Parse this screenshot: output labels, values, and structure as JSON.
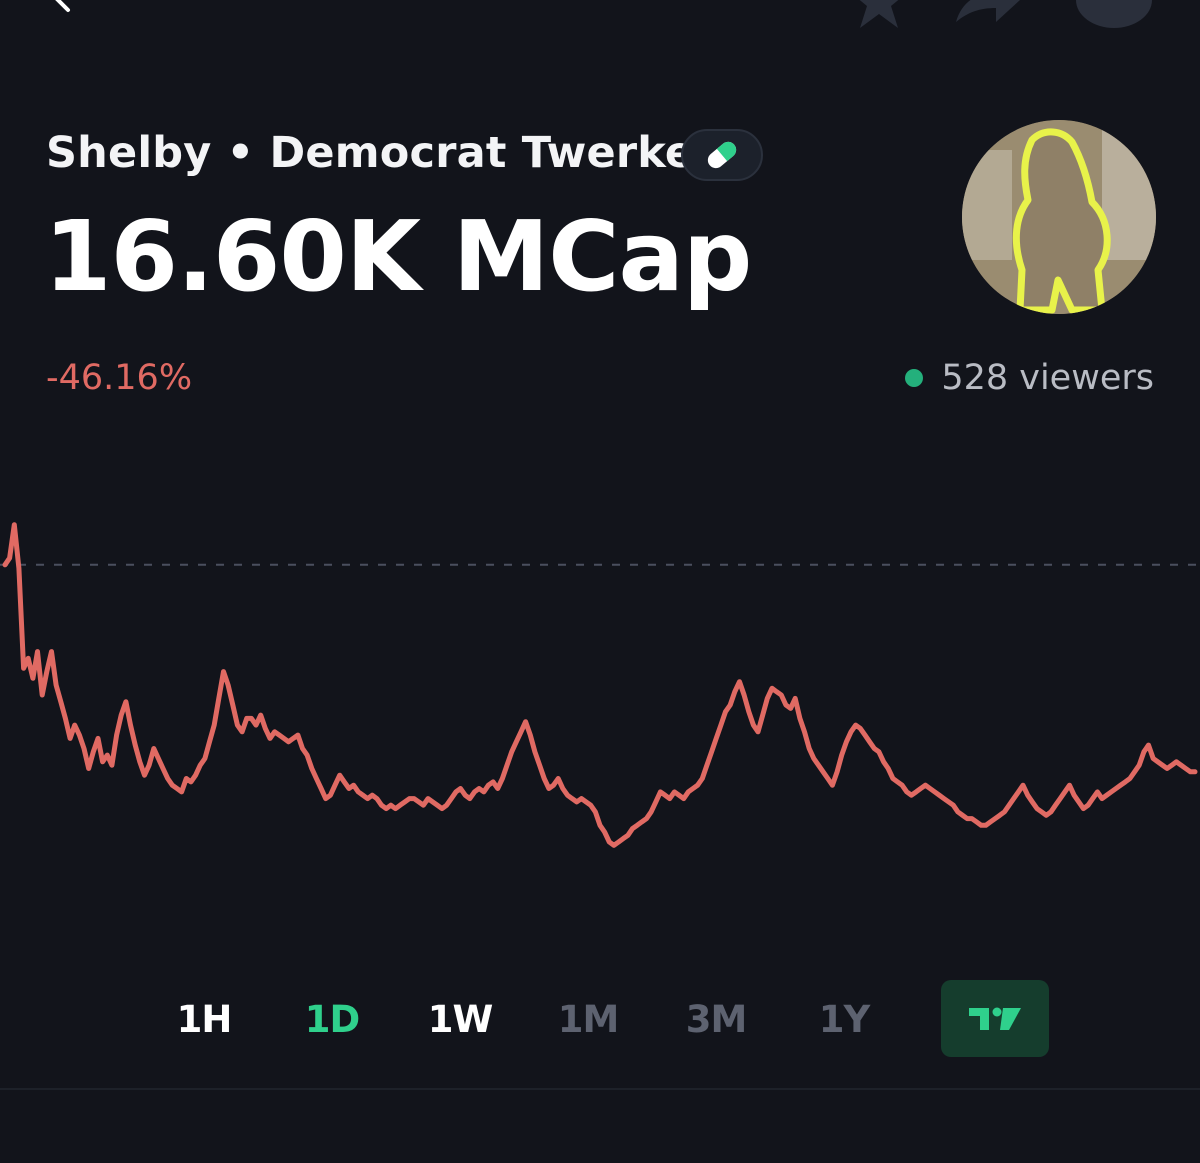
{
  "token": {
    "name": "Shelby",
    "separator": "•",
    "subtitle": "Democrat Twerker",
    "market_cap_label": "16.60K MCap",
    "change_percent": "-46.16%",
    "viewers_label": "528 viewers"
  },
  "colors": {
    "background": "#12141b",
    "negative": "#e06a63",
    "positive": "#2fd08c",
    "live": "#24b07c"
  },
  "icons": {
    "back": "chevron-left-icon",
    "star": "star-icon",
    "share": "share-icon",
    "badge": "pill-icon",
    "tradingview": "tradingview-icon"
  },
  "timeframes": [
    {
      "label": "1H",
      "state": "enabled"
    },
    {
      "label": "1D",
      "state": "active"
    },
    {
      "label": "1W",
      "state": "enabled"
    },
    {
      "label": "1M",
      "state": "disabled"
    },
    {
      "label": "3M",
      "state": "disabled"
    },
    {
      "label": "1Y",
      "state": "disabled"
    }
  ],
  "chart_data": {
    "type": "line",
    "ylim": [
      0,
      100
    ],
    "reference_line": 86,
    "values": [
      86,
      88,
      98,
      85,
      55,
      58,
      52,
      60,
      47,
      54,
      60,
      50,
      45,
      40,
      34,
      38,
      35,
      31,
      25,
      30,
      34,
      27,
      29,
      26,
      35,
      41,
      45,
      38,
      32,
      27,
      23,
      26,
      31,
      28,
      25,
      22,
      20,
      19,
      18,
      22,
      21,
      23,
      26,
      28,
      33,
      38,
      46,
      54,
      50,
      44,
      38,
      36,
      40,
      40,
      38,
      41,
      37,
      34,
      36,
      35,
      34,
      33,
      34,
      35,
      31,
      29,
      25,
      22,
      19,
      16,
      17,
      20,
      23,
      21,
      19,
      20,
      18,
      17,
      16,
      17,
      16,
      14,
      13,
      14,
      13,
      14,
      15,
      16,
      16,
      15,
      14,
      16,
      15,
      14,
      13,
      14,
      16,
      18,
      19,
      17,
      16,
      18,
      19,
      18,
      20,
      21,
      19,
      22,
      26,
      30,
      33,
      36,
      39,
      35,
      30,
      26,
      22,
      19,
      20,
      22,
      19,
      17,
      16,
      15,
      16,
      15,
      14,
      12,
      8,
      6,
      3,
      2,
      3,
      4,
      5,
      7,
      8,
      9,
      10,
      12,
      15,
      18,
      17,
      16,
      18,
      17,
      16,
      18,
      19,
      20,
      22,
      26,
      30,
      34,
      38,
      42,
      44,
      48,
      51,
      47,
      42,
      38,
      36,
      41,
      46,
      49,
      48,
      47,
      44,
      43,
      46,
      40,
      36,
      31,
      28,
      26,
      24,
      22,
      20,
      24,
      29,
      33,
      36,
      38,
      37,
      35,
      33,
      31,
      30,
      27,
      25,
      22,
      21,
      20,
      18,
      17,
      18,
      19,
      20,
      19,
      18,
      17,
      16,
      15,
      14,
      12,
      11,
      10,
      10,
      9,
      8,
      8,
      9,
      10,
      11,
      12,
      14,
      16,
      18,
      20,
      17,
      15,
      13,
      12,
      11,
      12,
      14,
      16,
      18,
      20,
      17,
      15,
      13,
      14,
      16,
      18,
      16,
      17,
      18,
      19,
      20,
      21,
      22,
      24,
      26,
      30,
      32,
      28,
      27,
      26,
      25,
      26,
      27,
      26,
      25,
      24,
      24
    ]
  }
}
